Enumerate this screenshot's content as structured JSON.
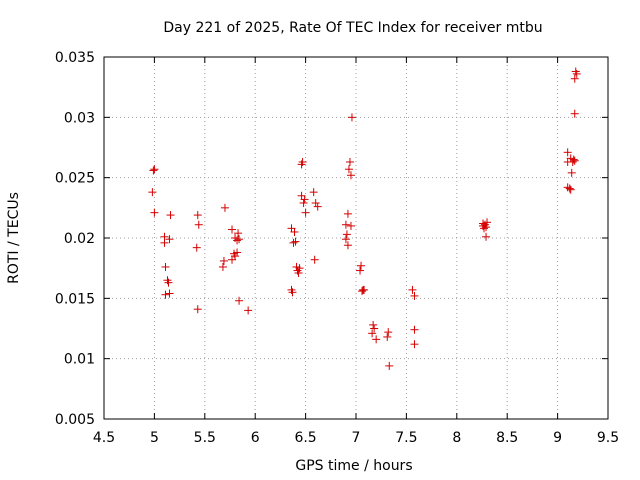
{
  "chart_data": {
    "type": "scatter",
    "title": "Day 221 of 2025, Rate Of TEC Index for receiver mtbu",
    "xlabel": "GPS time / hours",
    "ylabel": "ROTI / TECUs",
    "xlim": [
      4.5,
      9.5
    ],
    "ylim": [
      0.005,
      0.035
    ],
    "xticks": [
      "4.5",
      "5",
      "5.5",
      "6",
      "6.5",
      "7",
      "7.5",
      "8",
      "8.5",
      "9",
      "9.5"
    ],
    "yticks": [
      "0.005",
      "0.01",
      "0.015",
      "0.02",
      "0.025",
      "0.03",
      "0.035"
    ],
    "grid": true,
    "marker": "+",
    "color": "#d40000",
    "series": [
      {
        "name": "ROTI",
        "points": [
          [
            4.99,
            0.0256
          ],
          [
            5.0,
            0.0257
          ],
          [
            4.98,
            0.0238
          ],
          [
            5.0,
            0.0221
          ],
          [
            5.1,
            0.0201
          ],
          [
            5.1,
            0.0196
          ],
          [
            5.15,
            0.0199
          ],
          [
            5.16,
            0.0219
          ],
          [
            5.11,
            0.0176
          ],
          [
            5.13,
            0.0165
          ],
          [
            5.14,
            0.0163
          ],
          [
            5.11,
            0.0153
          ],
          [
            5.15,
            0.0154
          ],
          [
            5.43,
            0.0219
          ],
          [
            5.44,
            0.0211
          ],
          [
            5.42,
            0.0192
          ],
          [
            5.43,
            0.0141
          ],
          [
            5.7,
            0.0225
          ],
          [
            5.77,
            0.0207
          ],
          [
            5.8,
            0.02
          ],
          [
            5.82,
            0.0198
          ],
          [
            5.83,
            0.0204
          ],
          [
            5.84,
            0.0199
          ],
          [
            5.79,
            0.0187
          ],
          [
            5.8,
            0.0185
          ],
          [
            5.82,
            0.0188
          ],
          [
            5.77,
            0.0182
          ],
          [
            5.69,
            0.0181
          ],
          [
            5.68,
            0.0176
          ],
          [
            5.84,
            0.0148
          ],
          [
            5.93,
            0.014
          ],
          [
            6.36,
            0.0208
          ],
          [
            6.39,
            0.0205
          ],
          [
            6.38,
            0.0196
          ],
          [
            6.4,
            0.0197
          ],
          [
            6.41,
            0.0176
          ],
          [
            6.42,
            0.0173
          ],
          [
            6.43,
            0.0171
          ],
          [
            6.44,
            0.0175
          ],
          [
            6.36,
            0.0157
          ],
          [
            6.37,
            0.0155
          ],
          [
            6.46,
            0.0261
          ],
          [
            6.47,
            0.0263
          ],
          [
            6.46,
            0.0235
          ],
          [
            6.49,
            0.0232
          ],
          [
            6.48,
            0.0229
          ],
          [
            6.5,
            0.0221
          ],
          [
            6.58,
            0.0238
          ],
          [
            6.6,
            0.0229
          ],
          [
            6.62,
            0.0226
          ],
          [
            6.59,
            0.0182
          ],
          [
            6.96,
            0.03
          ],
          [
            6.94,
            0.0263
          ],
          [
            6.93,
            0.0257
          ],
          [
            6.95,
            0.0252
          ],
          [
            6.92,
            0.022
          ],
          [
            6.9,
            0.0211
          ],
          [
            6.95,
            0.021
          ],
          [
            6.91,
            0.0203
          ],
          [
            6.9,
            0.0199
          ],
          [
            6.92,
            0.0194
          ],
          [
            7.05,
            0.0177
          ],
          [
            7.04,
            0.0173
          ],
          [
            7.07,
            0.0157
          ],
          [
            7.06,
            0.0156
          ],
          [
            7.08,
            0.0157
          ],
          [
            7.17,
            0.0128
          ],
          [
            7.18,
            0.0125
          ],
          [
            7.16,
            0.0121
          ],
          [
            7.2,
            0.0116
          ],
          [
            7.32,
            0.0122
          ],
          [
            7.31,
            0.0118
          ],
          [
            7.33,
            0.0094
          ],
          [
            7.56,
            0.0157
          ],
          [
            7.58,
            0.0152
          ],
          [
            7.58,
            0.0124
          ],
          [
            7.58,
            0.0112
          ],
          [
            8.26,
            0.021
          ],
          [
            8.27,
            0.0208
          ],
          [
            8.28,
            0.0211
          ],
          [
            8.29,
            0.0209
          ],
          [
            8.3,
            0.0213
          ],
          [
            8.26,
            0.0212
          ],
          [
            8.29,
            0.0201
          ],
          [
            9.18,
            0.0338
          ],
          [
            9.19,
            0.0336
          ],
          [
            9.17,
            0.0332
          ],
          [
            9.17,
            0.0303
          ],
          [
            9.1,
            0.0271
          ],
          [
            9.13,
            0.0266
          ],
          [
            9.15,
            0.0263
          ],
          [
            9.17,
            0.0264
          ],
          [
            9.16,
            0.0265
          ],
          [
            9.1,
            0.0263
          ],
          [
            9.14,
            0.0254
          ],
          [
            9.1,
            0.0242
          ],
          [
            9.12,
            0.0241
          ],
          [
            9.13,
            0.024
          ]
        ]
      }
    ]
  }
}
